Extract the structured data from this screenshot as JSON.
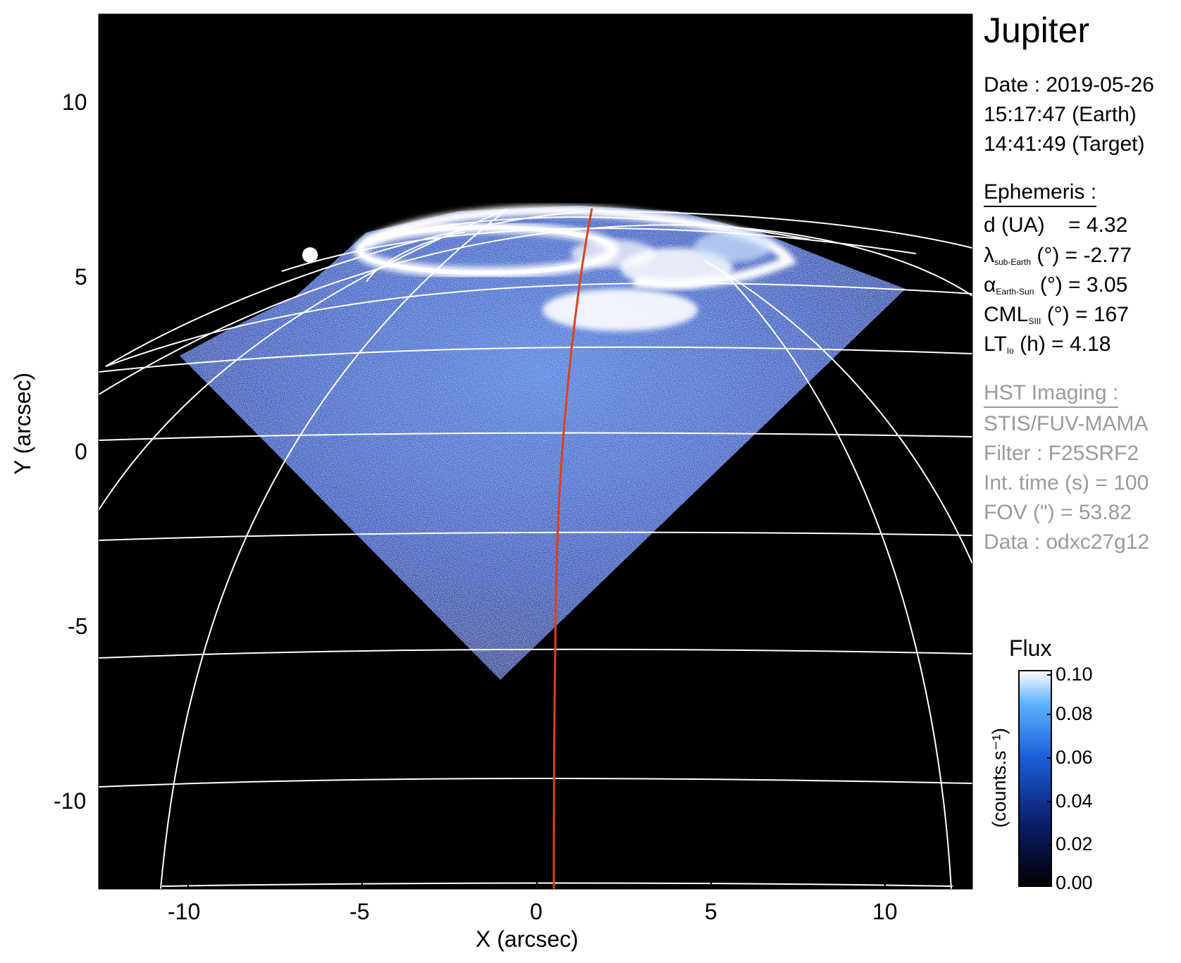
{
  "title": "Jupiter",
  "date_line": "Date : 2019-05-26",
  "earth_time": "15:17:47 (Earth)",
  "target_time": "14:41:49 (Target)",
  "ephemeris": {
    "heading": "Ephemeris :",
    "d": "d (UA)    = 4.32",
    "lambda_sym": "λ",
    "lambda_sub": "sub-Earth",
    "lambda_rest": " (°) = -2.77",
    "alpha_sym": "α",
    "alpha_sub": "Earth-Sun",
    "alpha_rest": " (°) = 3.05",
    "cml_sym": "CML",
    "cml_sub": "SIII",
    "cml_rest": " (°) = 167",
    "lt_sym": "LT",
    "lt_sub": "Io",
    "lt_rest": " (h) = 4.18"
  },
  "hst": {
    "heading": "HST Imaging :",
    "instrument": "STIS/FUV-MAMA",
    "filter": "Filter : F25SRF2",
    "int_time": "Int. time (s) = 100",
    "fov": "FOV (\") = 53.82",
    "data": "Data : odxc27g12"
  },
  "axes": {
    "xlabel": "X (arcsec)",
    "ylabel": "Y (arcsec)",
    "x_ticks": [
      "-10",
      "-5",
      "0",
      "5",
      "10"
    ],
    "y_ticks": [
      "10",
      "5",
      "0",
      "-5",
      "-10"
    ]
  },
  "colorbar": {
    "title": "Flux",
    "unit": "(counts.s⁻¹)",
    "ticks": [
      "0.10",
      "0.08",
      "0.06",
      "0.04",
      "0.02",
      "0.00"
    ],
    "colors": [
      "#000000",
      "#0a1f6e",
      "#1b5fd8",
      "#5fb3ff",
      "#ffffff"
    ]
  },
  "image": {
    "background": "#000000",
    "grid_color": "#ffffff",
    "meridian_color": "#e0401a",
    "aurora_color": "#ffffff",
    "disk_color": "#1e4fbf"
  }
}
